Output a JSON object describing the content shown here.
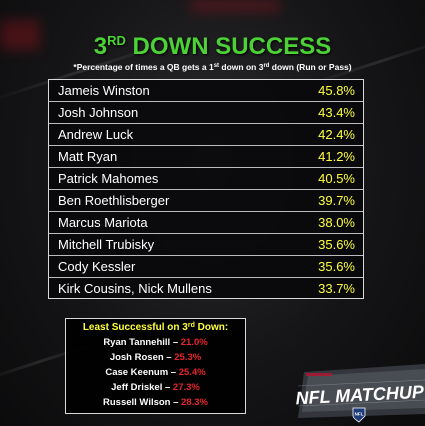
{
  "title": {
    "prefix": "3",
    "superscript": "RD",
    "main": " DOWN SUCCESS"
  },
  "subtitle": {
    "part1": "*Percentage of times a QB gets a 1",
    "sup1": "st",
    "part2": " down on 3",
    "sup2": "rd",
    "part3": " down (Run or Pass)"
  },
  "leaders": [
    {
      "name": "Jameis Winston",
      "pct": "45.8%"
    },
    {
      "name": "Josh Johnson",
      "pct": "43.4%"
    },
    {
      "name": "Andrew Luck",
      "pct": "42.4%"
    },
    {
      "name": "Matt Ryan",
      "pct": "41.2%"
    },
    {
      "name": "Patrick Mahomes",
      "pct": "40.5%"
    },
    {
      "name": "Ben Roethlisberger",
      "pct": "39.7%"
    },
    {
      "name": "Marcus Mariota",
      "pct": "38.0%"
    },
    {
      "name": "Mitchell Trubisky",
      "pct": "35.6%"
    },
    {
      "name": "Cody Kessler",
      "pct": "35.6%"
    },
    {
      "name": "Kirk Cousins, Nick Mullens",
      "pct": "33.7%"
    }
  ],
  "least": {
    "title_part1": "Least Successful on 3",
    "title_sup": "rd",
    "title_part2": " Down:",
    "dash": " – ",
    "rows": [
      {
        "name": "Ryan Tannehill",
        "pct": "21.0%"
      },
      {
        "name": "Josh Rosen",
        "pct": "25.3%"
      },
      {
        "name": "Case Keenum",
        "pct": "25.4%"
      },
      {
        "name": "Jeff Driskel",
        "pct": "27.3%"
      },
      {
        "name": "Russell Wilson",
        "pct": "28.3%"
      }
    ]
  },
  "logo": {
    "text": "NFL MATCHUP",
    "shield": "NFL"
  },
  "colors": {
    "title_green": "#4cd137",
    "value_yellow": "#ffff3d",
    "least_red": "#e8252c"
  }
}
